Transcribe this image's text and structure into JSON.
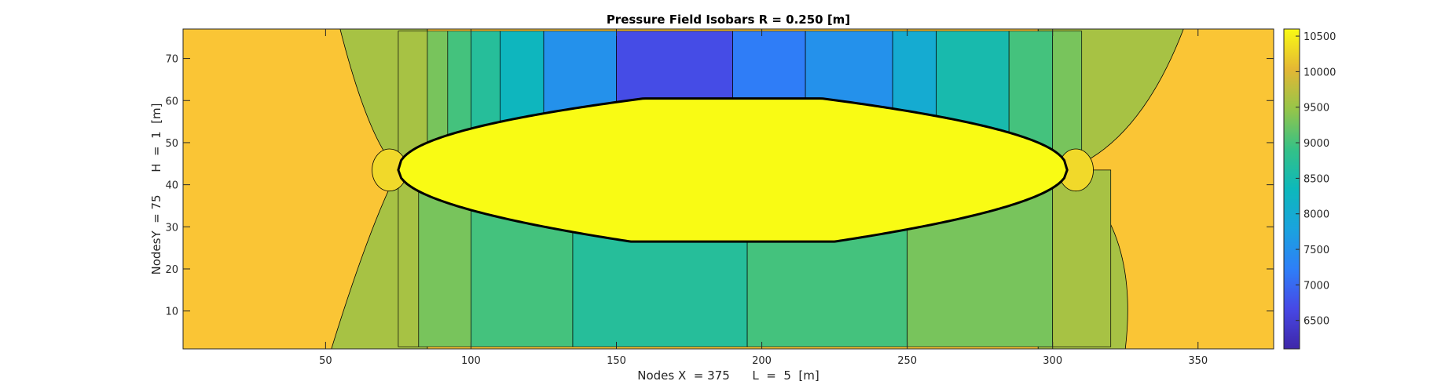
{
  "chart_data": {
    "type": "contour",
    "title": "Pressure Field Isobars R = 0.250 [m]",
    "xlabel": "Nodes X  = 375      L  =  5  [m]",
    "ylabel": "NodesY  = 75      H  =  1  [m]",
    "xlim": [
      1,
      376
    ],
    "ylim": [
      1,
      77
    ],
    "xticks": [
      50,
      100,
      150,
      200,
      250,
      300,
      350
    ],
    "yticks": [
      10,
      20,
      30,
      40,
      50,
      60,
      70
    ],
    "colorbar": {
      "range": [
        6100,
        10600
      ],
      "ticks": [
        6500,
        7000,
        7500,
        8000,
        8500,
        9000,
        9500,
        10000,
        10500
      ],
      "colormap": "parula"
    },
    "obstacle": {
      "x_range": [
        75,
        305
      ],
      "y_center": 43.5,
      "y_range": [
        26.5,
        60.5
      ],
      "pressure": 10600
    },
    "levels": {
      "background": 9800,
      "near_obstacle_ends": 9600,
      "upper_region": [
        {
          "x_range": [
            75,
            85
          ],
          "pressure": 9600
        },
        {
          "x_range": [
            85,
            92
          ],
          "pressure": 9300
        },
        {
          "x_range": [
            92,
            100
          ],
          "pressure": 9000
        },
        {
          "x_range": [
            100,
            110
          ],
          "pressure": 8700
        },
        {
          "x_range": [
            110,
            125
          ],
          "pressure": 8300
        },
        {
          "x_range": [
            125,
            150
          ],
          "pressure": 7500
        },
        {
          "x_range": [
            150,
            190
          ],
          "pressure": 6700
        },
        {
          "x_range": [
            190,
            215
          ],
          "pressure": 7200
        },
        {
          "x_range": [
            215,
            245
          ],
          "pressure": 7500
        },
        {
          "x_range": [
            245,
            260
          ],
          "pressure": 8000
        },
        {
          "x_range": [
            260,
            285
          ],
          "pressure": 8500
        },
        {
          "x_range": [
            285,
            300
          ],
          "pressure": 9000
        },
        {
          "x_range": [
            300,
            310
          ],
          "pressure": 9300
        }
      ],
      "lower_region": [
        {
          "x_range": [
            75,
            82
          ],
          "pressure": 9600
        },
        {
          "x_range": [
            82,
            100
          ],
          "pressure": 9300
        },
        {
          "x_range": [
            100,
            135
          ],
          "pressure": 9000
        },
        {
          "x_range": [
            135,
            195
          ],
          "pressure": 8700
        },
        {
          "x_range": [
            195,
            250
          ],
          "pressure": 9000
        },
        {
          "x_range": [
            250,
            300
          ],
          "pressure": 9300
        },
        {
          "x_range": [
            300,
            320
          ],
          "pressure": 9600
        }
      ]
    }
  }
}
